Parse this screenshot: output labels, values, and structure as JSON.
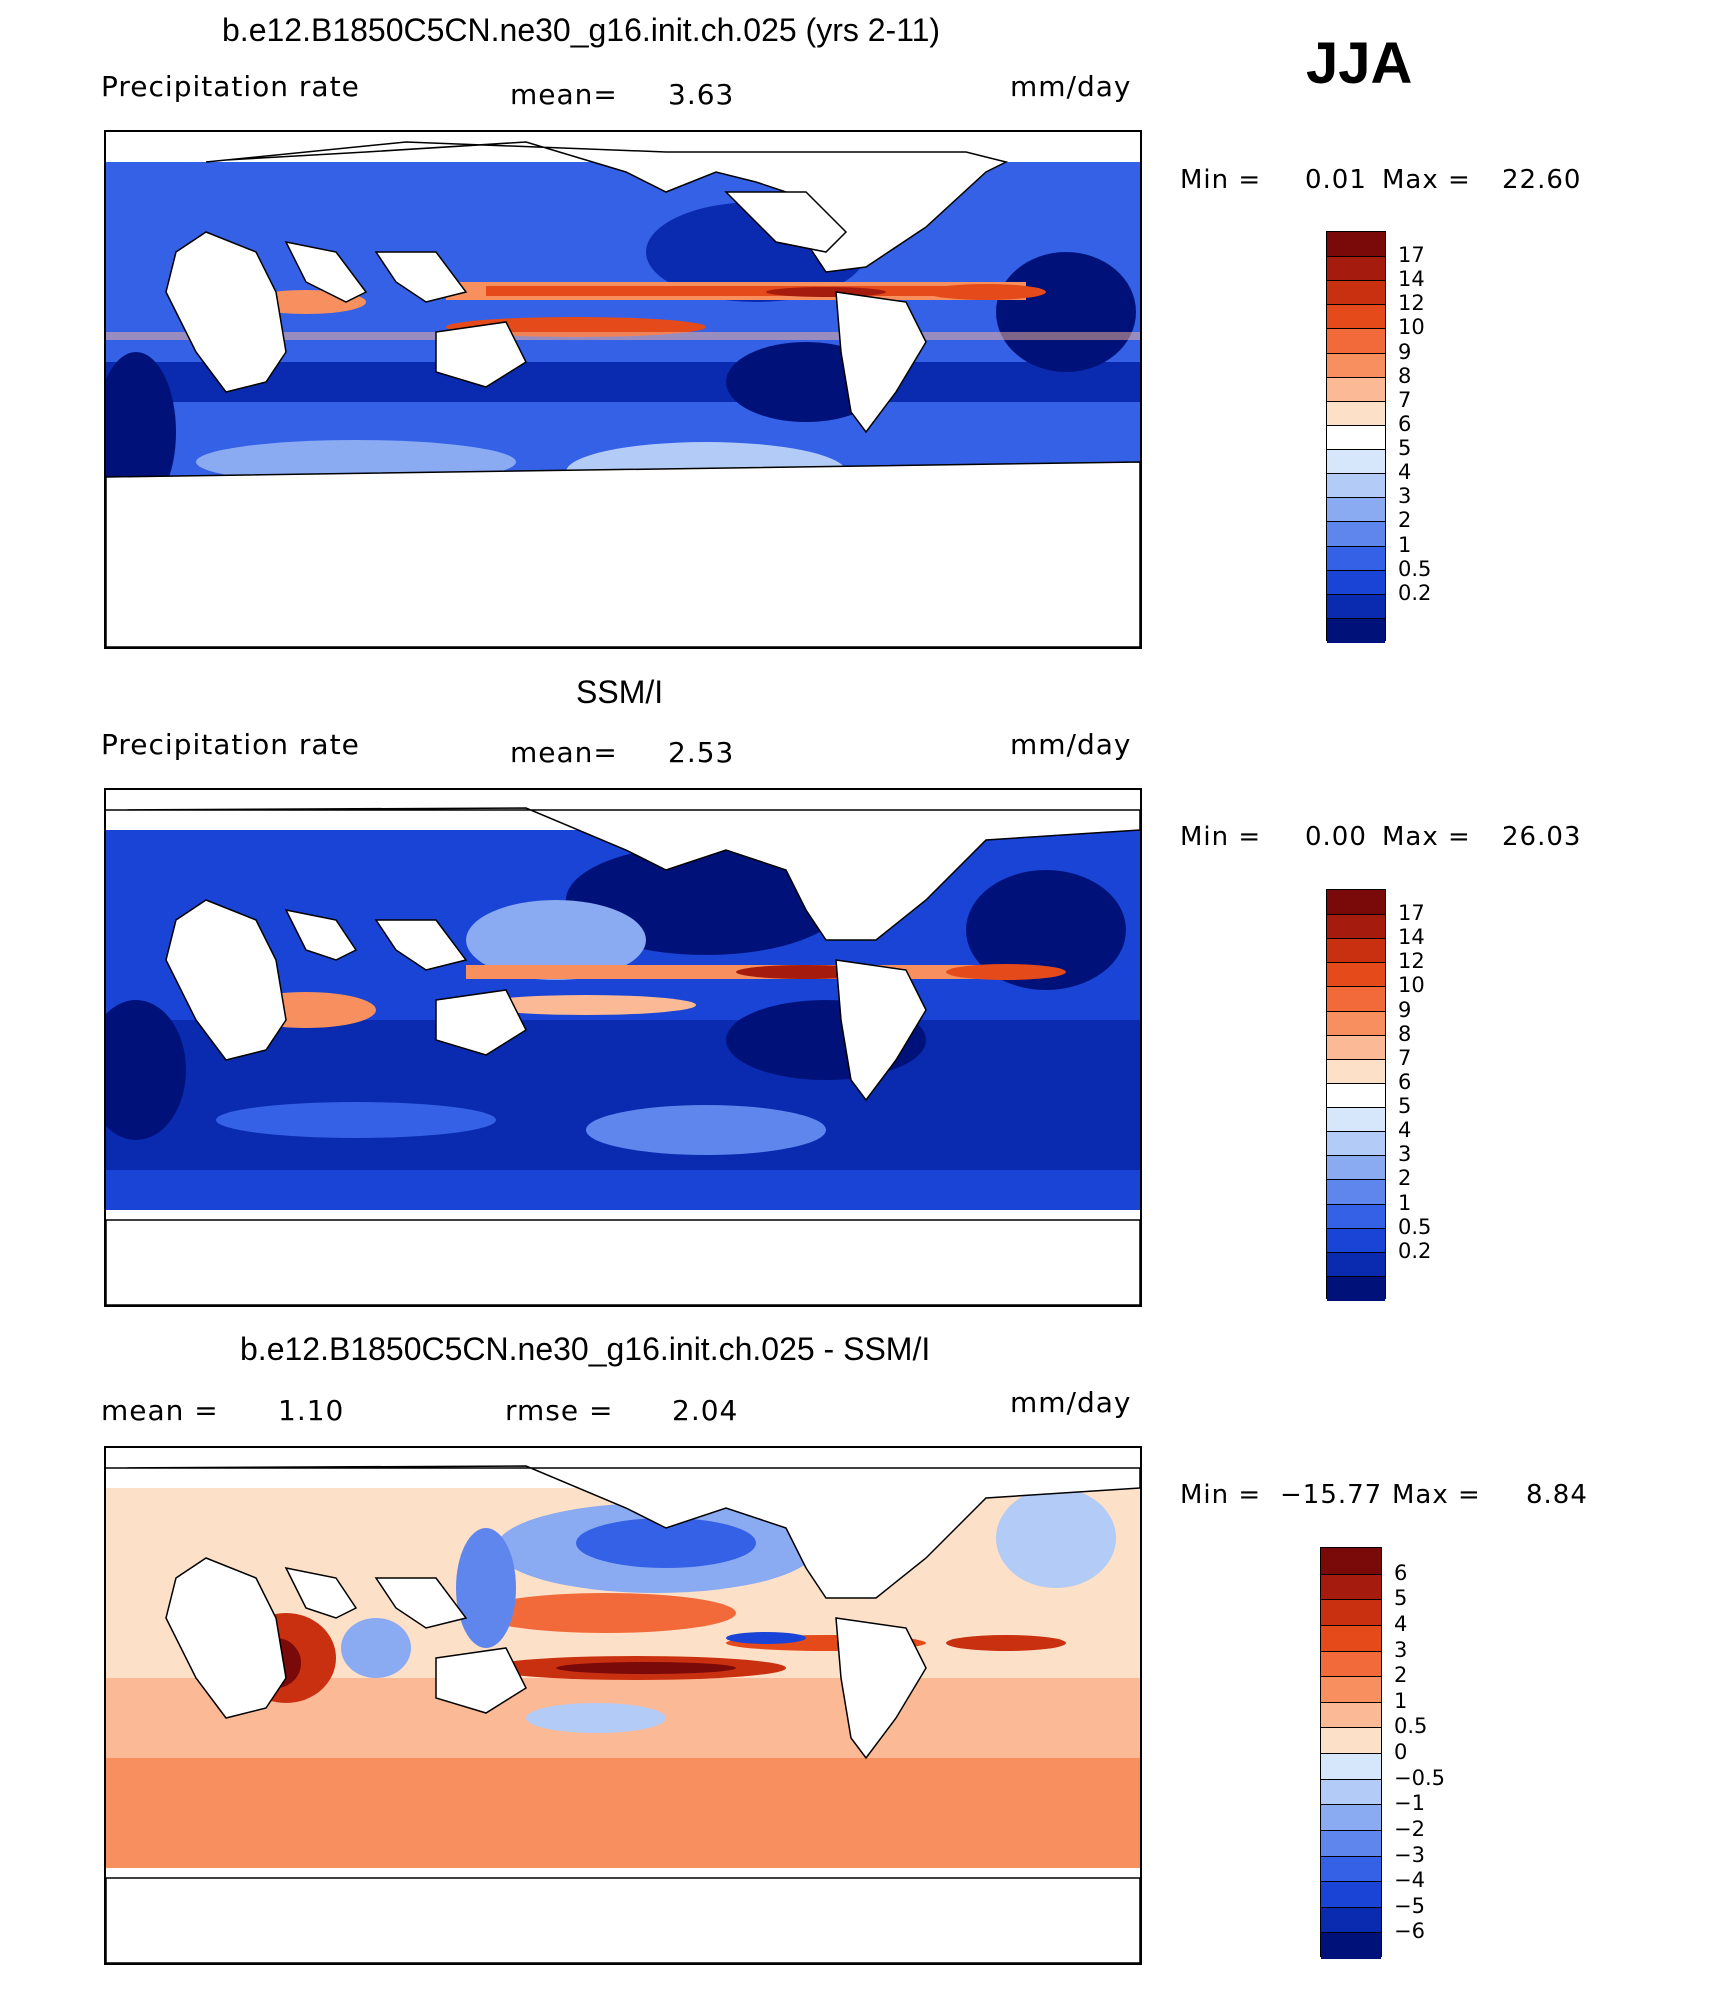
{
  "season": "JJA",
  "units": "mm/day",
  "panels": [
    {
      "title": "b.e12.B1850C5CN.ne30_g16.init.ch.025 (yrs 2-11)",
      "left_label": "Precipitation  rate",
      "mid_label": "mean=",
      "mid_value": "3.63",
      "right_label": "mm/day",
      "min_label": "Min  =",
      "min_value": "0.01",
      "max_label": "Max  =",
      "max_value": "22.60",
      "colorbar_labels": [
        "17",
        "14",
        "12",
        "10",
        "9",
        "8",
        "7",
        "6",
        "5",
        "4",
        "3",
        "2",
        "1",
        "0.5",
        "0.2"
      ]
    },
    {
      "title": "SSM/I",
      "left_label": "Precipitation  rate",
      "mid_label": "mean=",
      "mid_value": "2.53",
      "right_label": "mm/day",
      "min_label": "Min  =",
      "min_value": "0.00",
      "max_label": "Max  =",
      "max_value": "26.03",
      "colorbar_labels": [
        "17",
        "14",
        "12",
        "10",
        "9",
        "8",
        "7",
        "6",
        "5",
        "4",
        "3",
        "2",
        "1",
        "0.5",
        "0.2"
      ]
    },
    {
      "title": "b.e12.B1850C5CN.ne30_g16.init.ch.025 - SSM/I",
      "left_label": "mean  =",
      "left_value": "1.10",
      "mid_label": "rmse  =",
      "mid_value": "2.04",
      "right_label": "mm/day",
      "min_label": "Min  =",
      "min_value": "−15.77",
      "max_label": "Max  =",
      "max_value": "8.84",
      "colorbar_labels": [
        "6",
        "5",
        "4",
        "3",
        "2",
        "1",
        "0.5",
        "0",
        "−0.5",
        "−1",
        "−2",
        "−3",
        "−4",
        "−5",
        "−6"
      ]
    }
  ],
  "colors": {
    "precip_scale": [
      "#7a0a0a",
      "#a51c0e",
      "#c9300f",
      "#e54a1a",
      "#f26a3a",
      "#f7905e",
      "#fbb996",
      "#fde0c8",
      "#ffffff",
      "#d6e6fb",
      "#b2cbf7",
      "#8aaaf2",
      "#5f86ed",
      "#3561e6",
      "#1a44d6",
      "#0a2bb0",
      "#00127a"
    ],
    "diff_scale": [
      "#7a0a0a",
      "#a51c0e",
      "#c9300f",
      "#e54a1a",
      "#f26a3a",
      "#f7905e",
      "#fbb996",
      "#fde0c8",
      "#d6e6fb",
      "#b2cbf7",
      "#8aaaf2",
      "#5f86ed",
      "#3561e6",
      "#1a44d6",
      "#0a2bb0",
      "#00127a"
    ]
  }
}
